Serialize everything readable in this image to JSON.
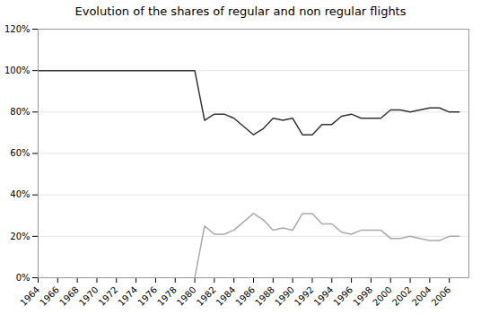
{
  "chart_data": {
    "type": "line",
    "title": "Evolution of the shares of regular and non regular flights",
    "series": [
      {
        "color": "#333333",
        "x": [
          1964,
          1965,
          1966,
          1967,
          1968,
          1969,
          1970,
          1971,
          1972,
          1973,
          1974,
          1975,
          1976,
          1977,
          1978,
          1979,
          1980,
          1981,
          1982,
          1983,
          1984,
          1985,
          1986,
          1987,
          1988,
          1989,
          1990,
          1991,
          1992,
          1993,
          1994,
          1995,
          1996,
          1997,
          1998,
          1999,
          2000,
          2001,
          2002,
          2003,
          2004,
          2005,
          2006,
          2007
        ],
        "values": [
          1.0,
          1.0,
          1.0,
          1.0,
          1.0,
          1.0,
          1.0,
          1.0,
          1.0,
          1.0,
          1.0,
          1.0,
          1.0,
          1.0,
          1.0,
          1.0,
          1.0,
          0.76,
          0.79,
          0.79,
          0.77,
          0.73,
          0.69,
          0.72,
          0.77,
          0.76,
          0.77,
          0.69,
          0.69,
          0.74,
          0.74,
          0.78,
          0.79,
          0.77,
          0.77,
          0.77,
          0.81,
          0.81,
          0.8,
          0.81,
          0.82,
          0.82,
          0.8,
          0.8
        ]
      },
      {
        "color": "#aaaaaa",
        "x": [
          1980,
          1981,
          1982,
          1983,
          1984,
          1985,
          1986,
          1987,
          1988,
          1989,
          1990,
          1991,
          1992,
          1993,
          1994,
          1995,
          1996,
          1997,
          1998,
          1999,
          2000,
          2001,
          2002,
          2003,
          2004,
          2005,
          2006,
          2007
        ],
        "values": [
          0.0,
          0.25,
          0.21,
          0.21,
          0.23,
          0.27,
          0.31,
          0.28,
          0.23,
          0.24,
          0.23,
          0.31,
          0.31,
          0.26,
          0.26,
          0.22,
          0.21,
          0.23,
          0.23,
          0.23,
          0.19,
          0.19,
          0.2,
          0.19,
          0.18,
          0.18,
          0.2,
          0.2
        ]
      }
    ],
    "xlim": [
      1964,
      2008
    ],
    "xticks": [
      1964,
      1966,
      1968,
      1970,
      1972,
      1974,
      1976,
      1978,
      1980,
      1982,
      1984,
      1986,
      1988,
      1990,
      1992,
      1994,
      1996,
      1998,
      2000,
      2002,
      2004,
      2006
    ],
    "ylim": [
      0.0,
      1.2
    ],
    "yticks": [
      {
        "value": 0.0,
        "label": "0%"
      },
      {
        "value": 0.2,
        "label": "20%"
      },
      {
        "value": 0.4,
        "label": "40%"
      },
      {
        "value": 0.6,
        "label": "60%"
      },
      {
        "value": 0.8,
        "label": "80%"
      },
      {
        "value": 1.0,
        "label": "100%"
      },
      {
        "value": 1.2,
        "label": "120%"
      }
    ],
    "grid": true
  }
}
